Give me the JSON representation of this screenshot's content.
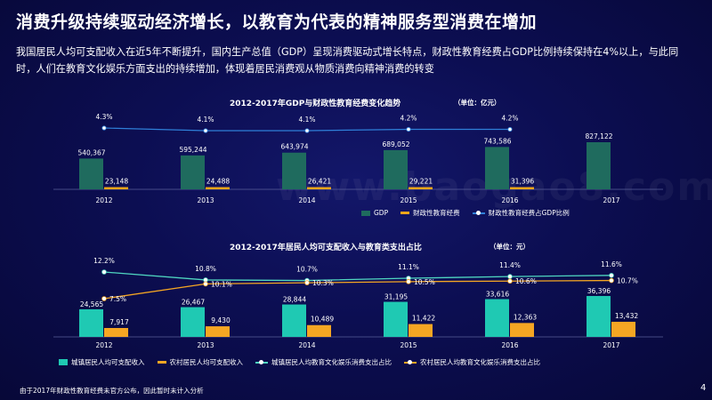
{
  "page": {
    "title": "消费升级持续驱动经济增长，以教育为代表的精神服务型消费在增加",
    "description": "我国居民人均可支配收入在近5年不断提升，国内生产总值（GDP）呈现消费驱动式增长特点，财政性教育经费占GDP比例持续保持在4%以上，与此同时，人们在教育文化娱乐方面支出的持续增加，体现着居民消费观从物质消费向精神消费的转变",
    "watermark": "www.baogao8.com",
    "footnote": "由于2017年财政性教育经费未官方公布，因此暂时未计入分析",
    "page_number": "4"
  },
  "colors": {
    "gdp": "#1f6b5e",
    "edu": "#f2a51a",
    "ratio_line": "#2f7fd8",
    "urban": "#1fc9b3",
    "rural": "#f5a623",
    "urban_line": "#4fd6c0",
    "rural_line": "#f5a623"
  },
  "chart_data": [
    {
      "type": "bar",
      "title": "2012-2017年GDP与财政性教育经费变化趋势",
      "unit_label": "（单位：亿元）",
      "categories": [
        "2012",
        "2013",
        "2014",
        "2015",
        "2016",
        "2017"
      ],
      "series": [
        {
          "name": "GDP",
          "kind": "bar",
          "values": [
            540367,
            595244,
            643974,
            689052,
            743586,
            827122
          ],
          "labels": [
            "540,367",
            "595,244",
            "643,974",
            "689,052",
            "743,586",
            "827,122"
          ]
        },
        {
          "name": "财政性教育经费",
          "kind": "bar",
          "values": [
            23148,
            24488,
            26421,
            29221,
            31396,
            null
          ],
          "labels": [
            "23,148",
            "24,488",
            "26,421",
            "29,221",
            "31,396",
            null
          ]
        },
        {
          "name": "财政性教育经费占GDP比例",
          "kind": "line",
          "values": [
            4.3,
            4.1,
            4.1,
            4.2,
            4.2,
            null
          ],
          "labels": [
            "4.3%",
            "4.1%",
            "4.1%",
            "4.2%",
            "4.2%",
            null
          ]
        }
      ],
      "legend": [
        "GDP",
        "财政性教育经费",
        "财政性教育经费占GDP比例"
      ]
    },
    {
      "type": "bar",
      "title": "2012-2017年居民人均可支配收入与教育类支出占比",
      "unit_label": "（单位：元）",
      "categories": [
        "2012",
        "2013",
        "2014",
        "2015",
        "2016",
        "2017"
      ],
      "series": [
        {
          "name": "城镇居民人均可支配收入",
          "kind": "bar",
          "values": [
            24565,
            26467,
            28844,
            31195,
            33616,
            36396
          ],
          "labels": [
            "24,565",
            "26,467",
            "28,844",
            "31,195",
            "33,616",
            "36,396"
          ]
        },
        {
          "name": "农村居民人均可支配收入",
          "kind": "bar",
          "values": [
            7917,
            9430,
            10489,
            11422,
            12363,
            13432
          ],
          "labels": [
            "7,917",
            "9,430",
            "10,489",
            "11,422",
            "12,363",
            "13,432"
          ]
        },
        {
          "name": "城镇居民人均教育文化娱乐消费支出占比",
          "kind": "line",
          "values": [
            12.2,
            10.8,
            10.7,
            11.1,
            11.4,
            11.6
          ],
          "labels": [
            "12.2%",
            "10.8%",
            "10.7%",
            "11.1%",
            "11.4%",
            "11.6%"
          ]
        },
        {
          "name": "农村居民人均教育文化娱乐消费支出占比",
          "kind": "line",
          "values": [
            7.5,
            10.1,
            10.3,
            10.5,
            10.6,
            10.7
          ],
          "labels": [
            "7.5%",
            "10.1%",
            "10.3%",
            "10.5%",
            "10.6%",
            "10.7%"
          ]
        }
      ],
      "legend": [
        "城镇居民人均可支配收入",
        "农村居民人均可支配收入",
        "城镇居民人均教育文化娱乐消费支出占比",
        "农村居民人均教育文化娱乐消费支出占比"
      ]
    }
  ]
}
